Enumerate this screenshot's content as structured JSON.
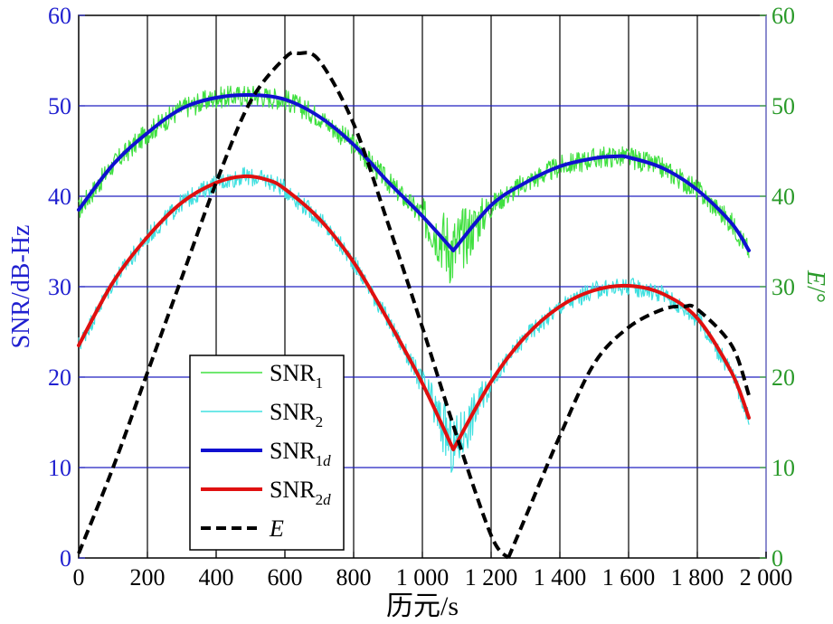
{
  "chart_data": {
    "type": "line",
    "xlabel": "历元/s",
    "ylabel_left": "SNR/dB-Hz",
    "ylabel_right_italic": "E",
    "ylabel_right_suffix": "/°",
    "xlim": [
      0,
      2000
    ],
    "ylim_left": [
      0,
      60
    ],
    "ylim_right": [
      0,
      60
    ],
    "x_ticks": [
      0,
      200,
      400,
      600,
      800,
      1000,
      1200,
      1400,
      1600,
      1800,
      2000
    ],
    "x_tick_labels": [
      "0",
      "200",
      "400",
      "600",
      "800",
      "1 000",
      "1 200",
      "1 400",
      "1 600",
      "1 800",
      "2 000"
    ],
    "y_left_ticks": [
      "0",
      "10",
      "20",
      "30",
      "40",
      "50",
      "60"
    ],
    "y_right_ticks": [
      "0",
      "10",
      "20",
      "30",
      "40",
      "50",
      "60"
    ],
    "grid": {
      "vertical": true,
      "horizontal": true
    },
    "legend_position": "bottom-left",
    "series": [
      {
        "id": "snr1",
        "name": "SNR",
        "subscript": "1",
        "italic_subscript": false,
        "axis": "left",
        "color": "#40e040",
        "style": "noisy",
        "noise_amplitude": 1.2,
        "x": [
          0,
          100,
          200,
          300,
          400,
          500,
          600,
          700,
          800,
          900,
          1000,
          1090,
          1200,
          1300,
          1400,
          1500,
          1560,
          1600,
          1700,
          1800,
          1900,
          1950
        ],
        "y": [
          38.5,
          43.5,
          47.0,
          49.7,
          50.9,
          51.2,
          50.7,
          48.8,
          45.7,
          41.6,
          37.8,
          34.0,
          39.0,
          41.5,
          43.3,
          44.2,
          44.4,
          44.3,
          43.1,
          40.7,
          37.0,
          34.0
        ]
      },
      {
        "id": "snr2",
        "name": "SNR",
        "subscript": "2",
        "italic_subscript": false,
        "axis": "left",
        "color": "#40e0e0",
        "style": "noisy",
        "noise_amplitude": 1.0,
        "x": [
          0,
          100,
          200,
          300,
          400,
          480,
          550,
          600,
          700,
          800,
          900,
          1000,
          1090,
          1200,
          1300,
          1400,
          1500,
          1600,
          1700,
          1800,
          1900,
          1950
        ],
        "y": [
          23.5,
          30.5,
          35.5,
          39.3,
          41.5,
          42.2,
          41.8,
          40.8,
          37.5,
          32.7,
          26.3,
          19.3,
          12.0,
          19.5,
          24.5,
          27.8,
          29.6,
          30.1,
          29.2,
          26.5,
          20.5,
          15.5
        ]
      },
      {
        "id": "snr1d",
        "name": "SNR",
        "subscript": "1d",
        "italic_subscript": true,
        "axis": "left",
        "color": "#1010d0",
        "style": "solid-thick",
        "x": [
          0,
          100,
          200,
          300,
          400,
          500,
          600,
          700,
          800,
          900,
          1000,
          1090,
          1200,
          1300,
          1400,
          1500,
          1560,
          1600,
          1700,
          1800,
          1900,
          1950
        ],
        "y": [
          38.5,
          43.5,
          47.0,
          49.7,
          50.9,
          51.2,
          50.7,
          48.8,
          45.7,
          41.6,
          37.8,
          34.0,
          39.0,
          41.5,
          43.3,
          44.2,
          44.4,
          44.3,
          43.1,
          40.7,
          37.0,
          34.0
        ]
      },
      {
        "id": "snr2d",
        "name": "SNR",
        "subscript": "2d",
        "italic_subscript": true,
        "axis": "left",
        "color": "#e01010",
        "style": "solid-thick",
        "x": [
          0,
          100,
          200,
          300,
          400,
          480,
          550,
          600,
          700,
          800,
          900,
          1000,
          1090,
          1200,
          1300,
          1400,
          1500,
          1600,
          1700,
          1800,
          1900,
          1950
        ],
        "y": [
          23.5,
          30.5,
          35.5,
          39.3,
          41.5,
          42.2,
          41.8,
          40.8,
          37.5,
          32.7,
          26.3,
          19.3,
          12.0,
          19.5,
          24.5,
          27.8,
          29.6,
          30.1,
          29.2,
          26.5,
          20.5,
          15.5
        ]
      },
      {
        "id": "elev",
        "name": "E",
        "subscript": "",
        "italic_name": true,
        "axis": "right",
        "color": "#000000",
        "style": "dashed-thick",
        "x": [
          0,
          100,
          200,
          300,
          400,
          500,
          600,
          640,
          700,
          800,
          900,
          1000,
          1100,
          1200,
          1250,
          1300,
          1400,
          1500,
          1600,
          1700,
          1760,
          1800,
          1900,
          1950
        ],
        "y": [
          0.5,
          10.0,
          20.5,
          31.0,
          41.5,
          50.5,
          55.3,
          55.8,
          55.0,
          48.0,
          37.0,
          25.5,
          13.5,
          2.5,
          0.0,
          4.5,
          13.5,
          21.5,
          25.5,
          27.5,
          27.8,
          27.5,
          23.5,
          18.0
        ]
      }
    ]
  }
}
